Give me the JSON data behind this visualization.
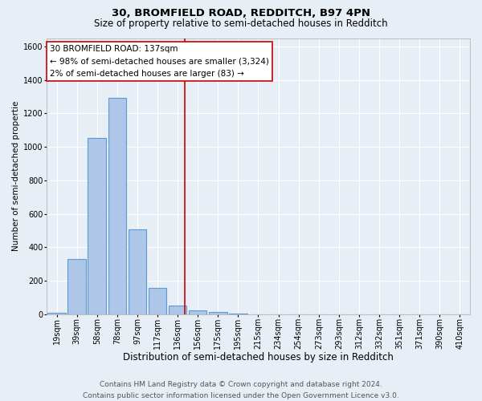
{
  "title": "30, BROMFIELD ROAD, REDDITCH, B97 4PN",
  "subtitle": "Size of property relative to semi-detached houses in Redditch",
  "xlabel": "Distribution of semi-detached houses by size in Redditch",
  "ylabel": "Number of semi-detached propertie",
  "footer_line1": "Contains HM Land Registry data © Crown copyright and database right 2024.",
  "footer_line2": "Contains public sector information licensed under the Open Government Licence v3.0.",
  "annotation_line1": "30 BROMFIELD ROAD: 137sqm",
  "annotation_line2": "← 98% of semi-detached houses are smaller (3,324)",
  "annotation_line3": "2% of semi-detached houses are larger (83) →",
  "bar_labels": [
    "19sqm",
    "39sqm",
    "58sqm",
    "78sqm",
    "97sqm",
    "117sqm",
    "136sqm",
    "156sqm",
    "175sqm",
    "195sqm",
    "215sqm",
    "234sqm",
    "254sqm",
    "273sqm",
    "293sqm",
    "312sqm",
    "332sqm",
    "351sqm",
    "371sqm",
    "390sqm",
    "410sqm"
  ],
  "bar_values": [
    10,
    330,
    1055,
    1295,
    505,
    155,
    50,
    25,
    15,
    5,
    0,
    0,
    0,
    0,
    0,
    0,
    0,
    0,
    0,
    0,
    0
  ],
  "bar_color": "#aec6e8",
  "bar_edge_color": "#5b9bd5",
  "property_line_bin_index": 6.35,
  "ylim": [
    0,
    1650
  ],
  "yticks": [
    0,
    200,
    400,
    600,
    800,
    1000,
    1200,
    1400,
    1600
  ],
  "background_color": "#e8eef6",
  "plot_background_color": "#e8eef6",
  "grid_color": "#ffffff",
  "annotation_box_color": "#ffffff",
  "annotation_box_edge_color": "#cc0000",
  "red_line_color": "#cc0000",
  "title_fontsize": 9.5,
  "subtitle_fontsize": 8.5,
  "xlabel_fontsize": 8.5,
  "ylabel_fontsize": 7.5,
  "tick_fontsize": 7,
  "annotation_fontsize": 7.5,
  "footer_fontsize": 6.5
}
